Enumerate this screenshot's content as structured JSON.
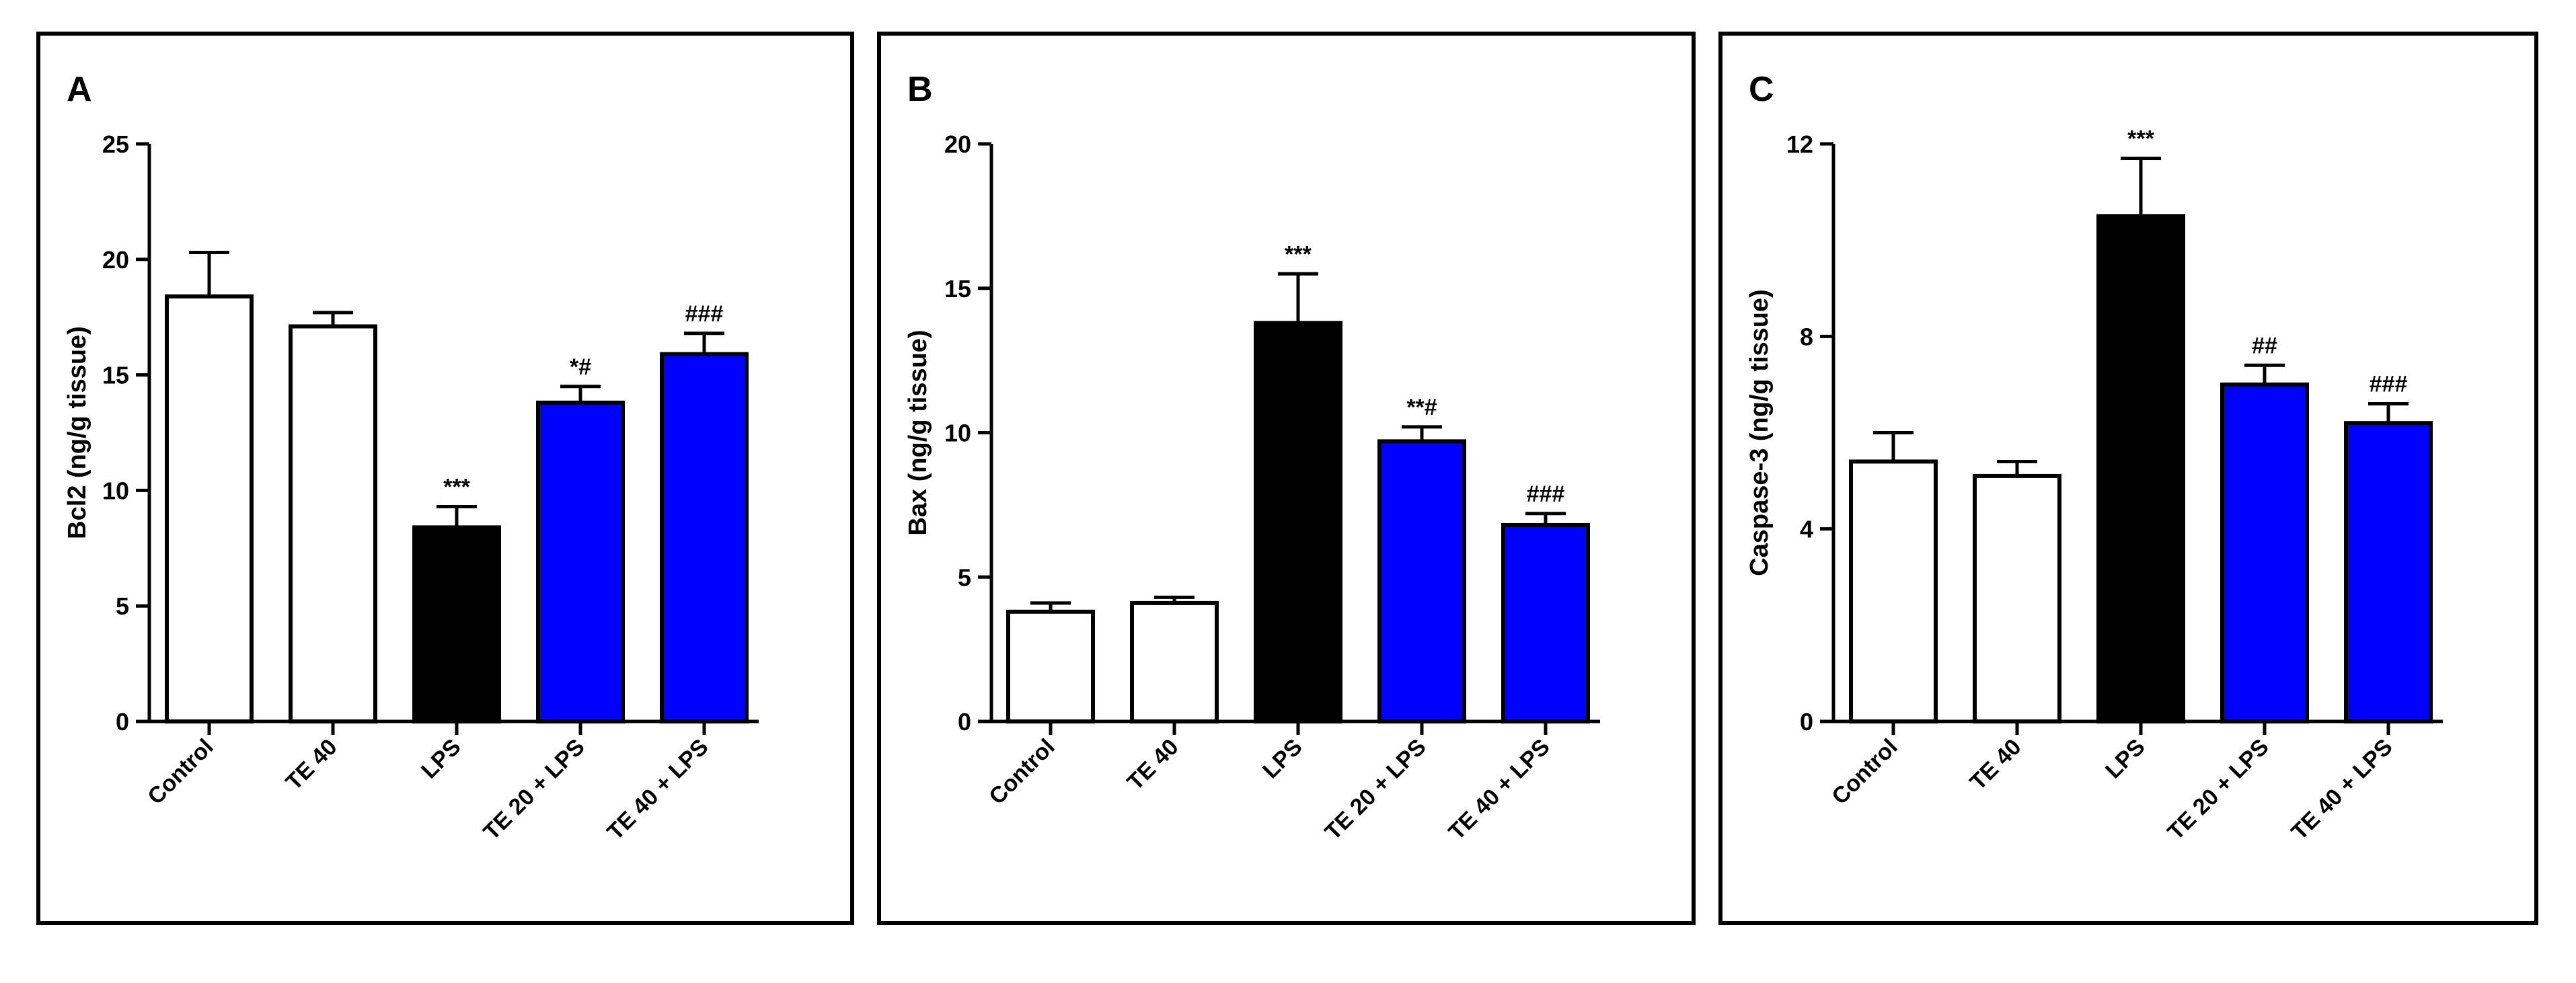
{
  "colors": {
    "white_bar": "#ffffff",
    "black_bar": "#000000",
    "blue_bar": "#0000ff",
    "stroke": "#000000"
  },
  "chart_data": [
    {
      "type": "bar",
      "panel_label": "A",
      "title": "",
      "ylabel": "Bcl2 (ng/g tissue)",
      "xlabel": "",
      "categories": [
        "Control",
        "TE 40",
        "LPS",
        "TE 20 + LPS",
        "TE 40 + LPS"
      ],
      "values": [
        18.4,
        17.1,
        8.4,
        13.8,
        15.9
      ],
      "errors": [
        1.9,
        0.6,
        0.9,
        0.7,
        0.9
      ],
      "bar_colors": [
        "white",
        "white",
        "black",
        "blue",
        "blue"
      ],
      "annotations": [
        "",
        "",
        "***",
        "*#",
        "###"
      ],
      "ylim": [
        0,
        25
      ],
      "yticks": [
        0,
        5,
        10,
        15,
        20,
        25
      ],
      "ytick_labels": [
        "0",
        "5",
        "10",
        "15",
        "20",
        "25"
      ]
    },
    {
      "type": "bar",
      "panel_label": "B",
      "title": "",
      "ylabel": "Bax (ng/g tissue)",
      "xlabel": "",
      "categories": [
        "Control",
        "TE 40",
        "LPS",
        "TE 20 + LPS",
        "TE 40 + LPS"
      ],
      "values": [
        3.8,
        4.1,
        13.8,
        9.7,
        6.8
      ],
      "errors": [
        0.3,
        0.2,
        1.7,
        0.5,
        0.4
      ],
      "bar_colors": [
        "white",
        "white",
        "black",
        "blue",
        "blue"
      ],
      "annotations": [
        "",
        "",
        "***",
        "**#",
        "###"
      ],
      "ylim": [
        0,
        20
      ],
      "yticks": [
        0,
        5,
        10,
        15,
        20
      ],
      "ytick_labels": [
        "0",
        "5",
        "10",
        "15",
        "20"
      ]
    },
    {
      "type": "bar",
      "panel_label": "C",
      "title": "",
      "ylabel": "Caspase-3 (ng/g tissue)",
      "xlabel": "",
      "categories": [
        "Control",
        "TE 40",
        "LPS",
        "TE 20 + LPS",
        "TE 40 + LPS"
      ],
      "values": [
        5.4,
        5.1,
        10.5,
        7.0,
        6.2
      ],
      "errors": [
        0.6,
        0.3,
        1.2,
        0.4,
        0.4
      ],
      "bar_colors": [
        "white",
        "white",
        "black",
        "blue",
        "blue"
      ],
      "annotations": [
        "",
        "",
        "***",
        "##",
        "###"
      ],
      "ylim": [
        0,
        12
      ],
      "yticks": [
        0,
        4,
        8,
        12
      ],
      "ytick_labels": [
        "0",
        "4",
        "8",
        "12"
      ]
    }
  ]
}
